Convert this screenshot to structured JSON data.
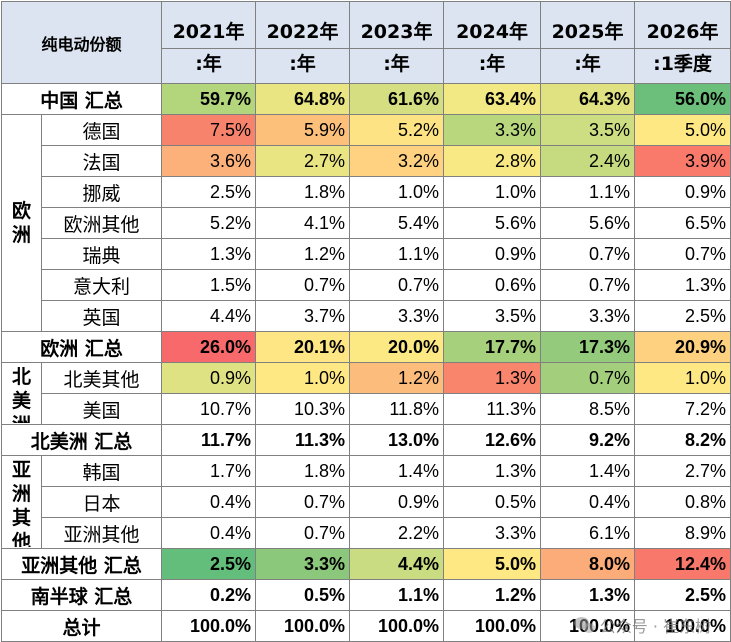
{
  "table": {
    "title": "纯电动份额",
    "years": [
      {
        "line1": "2021年",
        "line2": ":年"
      },
      {
        "line1": "2022年",
        "line2": ":年"
      },
      {
        "line1": "2023年",
        "line2": ":年"
      },
      {
        "line1": "2024年",
        "line2": ":年"
      },
      {
        "line1": "2025年",
        "line2": ":年"
      },
      {
        "line1": "2026年",
        "line2": ":1季度"
      }
    ],
    "china_total": {
      "label": "中国 汇总",
      "values": [
        "59.7%",
        "64.8%",
        "61.6%",
        "63.4%",
        "64.3%",
        "56.0%"
      ],
      "colors": [
        "#b3d67c",
        "#e9e583",
        "#d5df82",
        "#f2e884",
        "#e0e282",
        "#6bbf7b"
      ]
    },
    "groups": [
      {
        "region": "欧洲",
        "rows": [
          {
            "label": "德国",
            "values": [
              "7.5%",
              "5.9%",
              "5.2%",
              "3.3%",
              "3.5%",
              "5.0%"
            ],
            "colors": [
              "#f8836c",
              "#fcc07b",
              "#fde383",
              "#b9d87e",
              "#cddd81",
              "#fde884"
            ]
          },
          {
            "label": "法国",
            "values": [
              "3.6%",
              "2.7%",
              "3.2%",
              "2.8%",
              "2.4%",
              "3.9%"
            ],
            "colors": [
              "#fcb07a",
              "#eae583",
              "#fed280",
              "#f8e984",
              "#c6db80",
              "#f9796b"
            ]
          },
          {
            "label": "挪威",
            "values": [
              "2.5%",
              "1.8%",
              "1.0%",
              "1.0%",
              "1.1%",
              "0.9%"
            ],
            "colors": []
          },
          {
            "label": "欧洲其他",
            "values": [
              "5.2%",
              "4.1%",
              "5.4%",
              "5.6%",
              "5.6%",
              "6.5%"
            ],
            "colors": []
          },
          {
            "label": "瑞典",
            "values": [
              "1.3%",
              "1.2%",
              "1.1%",
              "0.9%",
              "0.7%",
              "0.7%"
            ],
            "colors": []
          },
          {
            "label": "意大利",
            "values": [
              "1.5%",
              "0.7%",
              "0.7%",
              "0.6%",
              "0.7%",
              "1.3%"
            ],
            "colors": []
          },
          {
            "label": "英国",
            "values": [
              "4.4%",
              "3.7%",
              "3.3%",
              "3.5%",
              "3.3%",
              "2.5%"
            ],
            "colors": []
          }
        ],
        "total": {
          "label": "欧洲 汇总",
          "values": [
            "26.0%",
            "20.1%",
            "20.0%",
            "17.7%",
            "17.3%",
            "20.9%"
          ],
          "colors": [
            "#f8696b",
            "#fde683",
            "#fde984",
            "#a6d07c",
            "#94ca7b",
            "#fdd17f"
          ]
        }
      },
      {
        "region": "北美洲",
        "rows": [
          {
            "label": "北美其他",
            "values": [
              "0.9%",
              "1.0%",
              "1.2%",
              "1.3%",
              "0.7%",
              "1.0%"
            ],
            "colors": [
              "#dfe282",
              "#fee884",
              "#fcbc7b",
              "#f9856d",
              "#a3cf7c",
              "#fee884"
            ]
          },
          {
            "label": "美国",
            "values": [
              "10.7%",
              "10.3%",
              "11.8%",
              "11.3%",
              "8.5%",
              "7.2%"
            ],
            "colors": []
          }
        ],
        "total": {
          "label": "北美洲 汇总",
          "values": [
            "11.7%",
            "11.3%",
            "13.0%",
            "12.6%",
            "9.2%",
            "8.2%"
          ],
          "colors": []
        }
      },
      {
        "region": "亚洲其他",
        "rows": [
          {
            "label": "韩国",
            "values": [
              "1.7%",
              "1.8%",
              "1.4%",
              "1.3%",
              "1.4%",
              "2.7%"
            ],
            "colors": []
          },
          {
            "label": "日本",
            "values": [
              "0.4%",
              "0.7%",
              "0.9%",
              "0.5%",
              "0.4%",
              "0.8%"
            ],
            "colors": []
          },
          {
            "label": "亚洲其他",
            "values": [
              "0.4%",
              "0.7%",
              "2.2%",
              "3.3%",
              "6.1%",
              "8.9%"
            ],
            "colors": []
          }
        ],
        "total": {
          "label": "亚洲其他 汇总",
          "values": [
            "2.5%",
            "3.3%",
            "4.4%",
            "5.0%",
            "8.0%",
            "12.4%"
          ],
          "colors": [
            "#63be7b",
            "#8cc87b",
            "#c9dc81",
            "#fde884",
            "#fcac78",
            "#f8786b"
          ]
        }
      }
    ],
    "southern_total": {
      "label": "南半球 汇总",
      "values": [
        "0.2%",
        "0.5%",
        "1.1%",
        "1.2%",
        "1.3%",
        "2.5%"
      ],
      "colors": []
    },
    "grand_total": {
      "label": "总计",
      "values": [
        "100.0%",
        "100.0%",
        "100.0%",
        "100.0%",
        "100.0%",
        "100.0%"
      ],
      "colors": []
    }
  },
  "watermark": {
    "text": "公众号 · 崔东树",
    "icon": "wechat-icon"
  }
}
